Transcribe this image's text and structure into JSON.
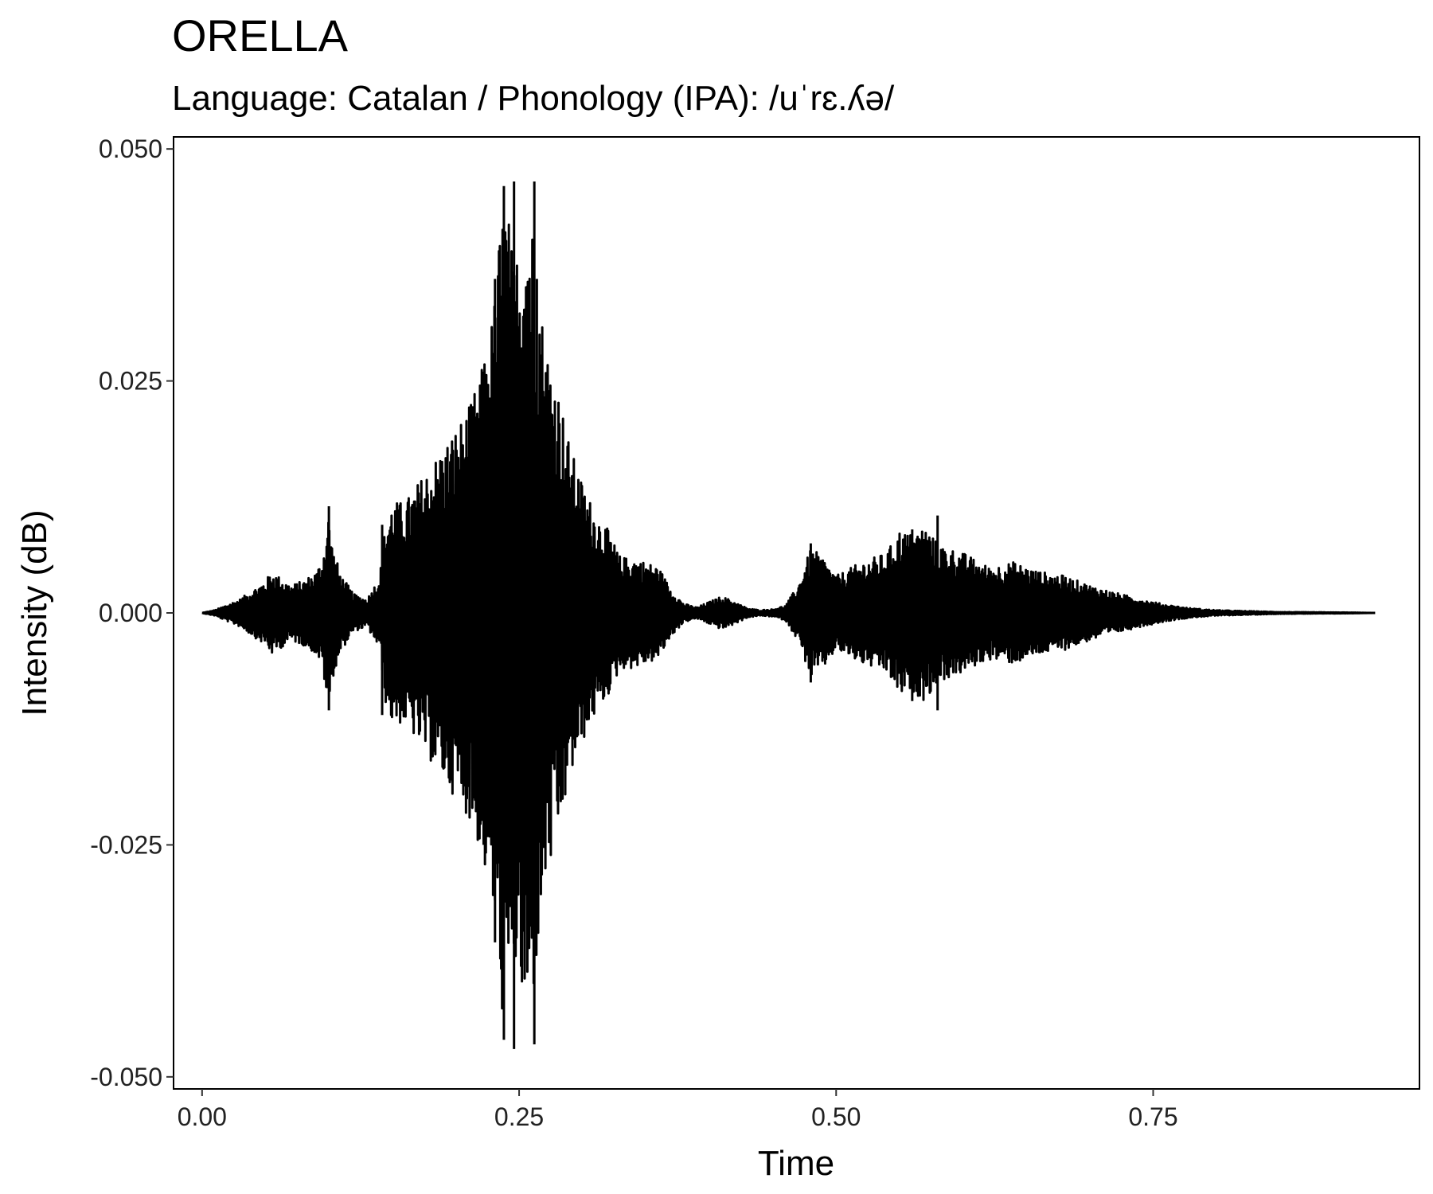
{
  "chart_data": {
    "type": "line",
    "title": "ORELLA",
    "subtitle": "Language: Catalan / Phonology (IPA): /uˈrɛ.ʎə/",
    "xlabel": "Time",
    "ylabel": "Intensity (dB)",
    "xlim": [
      -0.0225,
      0.96
    ],
    "ylim": [
      -0.0513,
      0.0513
    ],
    "x_ticks": [
      {
        "value": 0.0,
        "label": "0.00"
      },
      {
        "value": 0.25,
        "label": "0.25"
      },
      {
        "value": 0.5,
        "label": "0.50"
      },
      {
        "value": 0.75,
        "label": "0.75"
      }
    ],
    "y_ticks": [
      {
        "value": 0.05,
        "label": "0.050"
      },
      {
        "value": 0.025,
        "label": "0.025"
      },
      {
        "value": 0.0,
        "label": "0.000"
      },
      {
        "value": -0.025,
        "label": "-0.025"
      },
      {
        "value": -0.05,
        "label": "-0.050"
      }
    ],
    "grid": false,
    "series": [
      {
        "line_color": "#000000",
        "envelope": {
          "t": [
            0.0,
            0.01,
            0.03,
            0.05,
            0.055,
            0.06,
            0.07,
            0.08,
            0.09,
            0.095,
            0.1,
            0.103,
            0.11,
            0.12,
            0.13,
            0.14,
            0.145,
            0.15,
            0.16,
            0.17,
            0.18,
            0.19,
            0.2,
            0.21,
            0.22,
            0.23,
            0.235,
            0.24,
            0.245,
            0.25,
            0.255,
            0.26,
            0.27,
            0.28,
            0.29,
            0.3,
            0.31,
            0.32,
            0.33,
            0.34,
            0.35,
            0.36,
            0.37,
            0.38,
            0.39,
            0.4,
            0.41,
            0.42,
            0.43,
            0.44,
            0.45,
            0.46,
            0.47,
            0.48,
            0.49,
            0.5,
            0.52,
            0.54,
            0.55,
            0.56,
            0.57,
            0.58,
            0.6,
            0.62,
            0.64,
            0.66,
            0.68,
            0.7,
            0.72,
            0.74,
            0.76,
            0.78,
            0.8,
            0.85,
            0.9,
            0.925
          ],
          "amp": [
            0.0,
            0.0003,
            0.0015,
            0.0035,
            0.0045,
            0.004,
            0.003,
            0.0035,
            0.0045,
            0.006,
            0.011,
            0.007,
            0.004,
            0.002,
            0.0015,
            0.004,
            0.01,
            0.012,
            0.012,
            0.014,
            0.016,
            0.018,
            0.02,
            0.022,
            0.026,
            0.033,
            0.042,
            0.046,
            0.038,
            0.04,
            0.046,
            0.043,
            0.03,
            0.025,
            0.018,
            0.014,
            0.011,
            0.009,
            0.006,
            0.006,
            0.0055,
            0.005,
            0.0025,
            0.001,
            0.0006,
            0.0012,
            0.0018,
            0.0012,
            0.0005,
            0.0003,
            0.0004,
            0.0008,
            0.003,
            0.007,
            0.006,
            0.004,
            0.0055,
            0.0065,
            0.009,
            0.0085,
            0.0095,
            0.0075,
            0.0065,
            0.005,
            0.0055,
            0.0045,
            0.004,
            0.003,
            0.0022,
            0.0015,
            0.0009,
            0.0005,
            0.0003,
            0.0001,
            5e-05,
            0.0
          ]
        },
        "peaks": [
          {
            "t": 0.1,
            "max": 0.0115,
            "min": -0.0105
          },
          {
            "t": 0.142,
            "max": 0.0095,
            "min": -0.011
          },
          {
            "t": 0.222,
            "max": 0.026,
            "min": -0.025
          },
          {
            "t": 0.231,
            "max": 0.036,
            "min": -0.0355
          },
          {
            "t": 0.238,
            "max": 0.046,
            "min": -0.046
          },
          {
            "t": 0.246,
            "max": 0.0465,
            "min": -0.047
          },
          {
            "t": 0.262,
            "max": 0.0465,
            "min": -0.0465
          },
          {
            "t": 0.264,
            "max": 0.036,
            "min": -0.032
          },
          {
            "t": 0.48,
            "max": 0.0075,
            "min": -0.0075
          },
          {
            "t": 0.56,
            "max": 0.009,
            "min": -0.0095
          },
          {
            "t": 0.58,
            "max": 0.0105,
            "min": -0.0105
          }
        ]
      }
    ]
  }
}
